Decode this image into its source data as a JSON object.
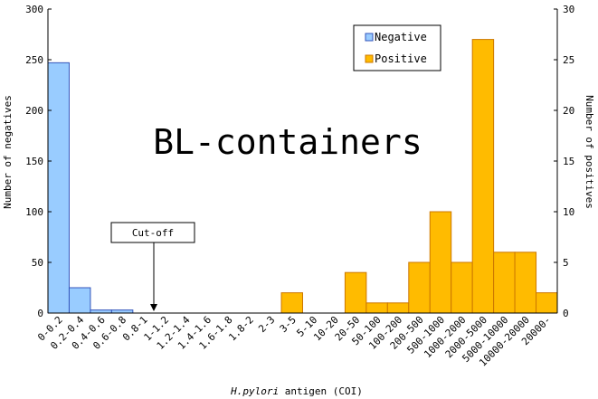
{
  "chart_data": {
    "type": "bar",
    "title": "BL-containers",
    "xlabel_italic": "H.pylori",
    "xlabel_rest": " antigen (COI)",
    "ylabel_left": "Number of negatives",
    "ylabel_right": "Number of positives",
    "ylim_left": [
      0,
      300
    ],
    "ylim_right": [
      0,
      30
    ],
    "yticks_left": [
      0,
      50,
      100,
      150,
      200,
      250,
      300
    ],
    "yticks_right": [
      0,
      5,
      10,
      15,
      20,
      25,
      30
    ],
    "categories": [
      "0-0.2",
      "0.2-0.4",
      "0.4-0.6",
      "0.6-0.8",
      "0.8-1",
      "1-1.2",
      "1.2-1.4",
      "1.4-1.6",
      "1.6-1.8",
      "1.8-2",
      "2-3",
      "3-5",
      "5-10",
      "10-20",
      "20-50",
      "50-100",
      "100-200",
      "200-500",
      "500-1000",
      "1000-2000",
      "2000-5000",
      "5000-10000",
      "10000-20000",
      "20000-"
    ],
    "series": [
      {
        "name": "Negative",
        "axis": "left",
        "color": "#99CCFF",
        "stroke": "#3355BB",
        "values": [
          247,
          25,
          3,
          3,
          0,
          0,
          0,
          0,
          0,
          0,
          0,
          0,
          0,
          0,
          0,
          0,
          0,
          0,
          0,
          0,
          0,
          0,
          0,
          0
        ]
      },
      {
        "name": "Positive",
        "axis": "right",
        "color": "#FFBB00",
        "stroke": "#CC7700",
        "values": [
          0,
          0,
          0,
          0,
          0,
          0,
          0,
          0,
          0,
          0,
          0,
          2,
          0,
          0,
          4,
          1,
          1,
          5,
          10,
          5,
          27,
          6,
          6,
          2
        ]
      }
    ],
    "legend_position": "top-right",
    "annotation": {
      "label": "Cut-off",
      "category_boundary_after": "0.8-1"
    },
    "grid": false
  }
}
